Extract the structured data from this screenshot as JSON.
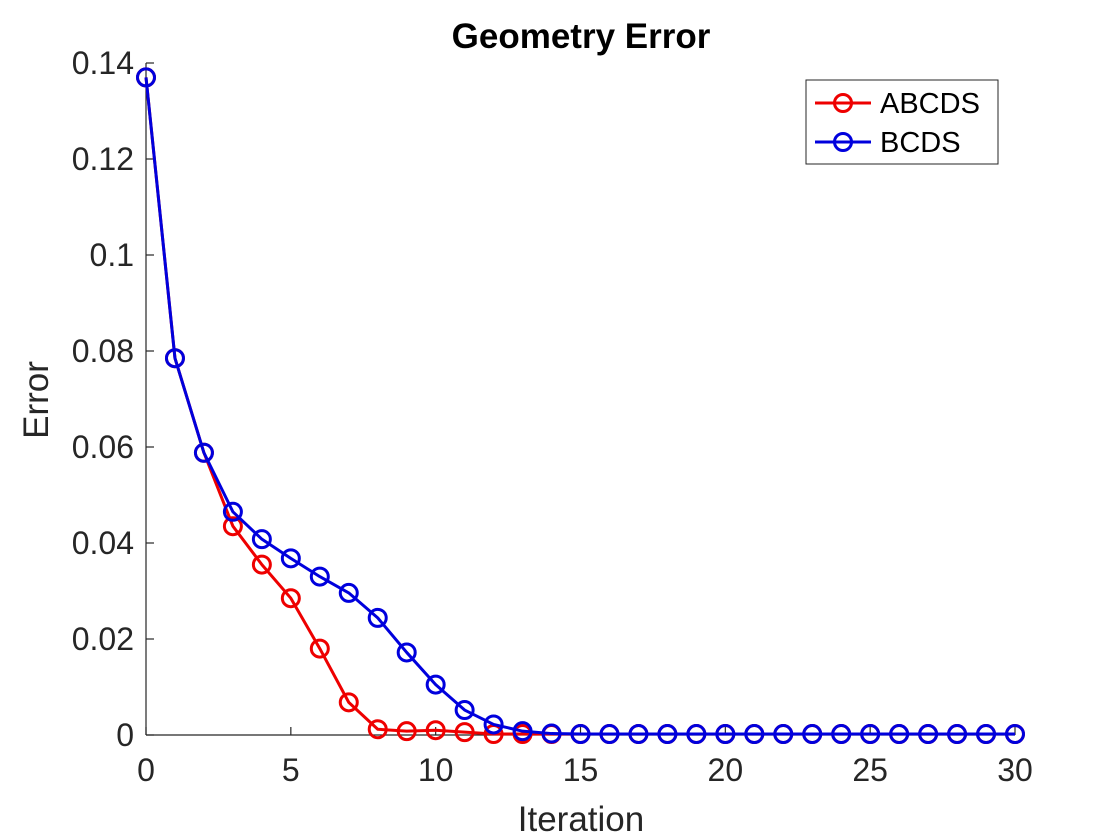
{
  "chart_data": {
    "type": "line",
    "title": "Geometry Error",
    "xlabel": "Iteration",
    "ylabel": "Error",
    "xlim": [
      0,
      30
    ],
    "ylim": [
      0,
      0.14
    ],
    "xticks": [
      0,
      5,
      10,
      15,
      20,
      25,
      30
    ],
    "xtick_labels": [
      "0",
      "5",
      "10",
      "15",
      "20",
      "25",
      "30"
    ],
    "yticks": [
      0,
      0.02,
      0.04,
      0.06,
      0.08,
      0.1,
      0.12,
      0.14
    ],
    "ytick_labels": [
      "0",
      "0.02",
      "0.04",
      "0.06",
      "0.08",
      "0.1",
      "0.12",
      "0.14"
    ],
    "grid": false,
    "legend_position": "top-right",
    "marker": "circle",
    "x": [
      0,
      1,
      2,
      3,
      4,
      5,
      6,
      7,
      8,
      9,
      10,
      11,
      12,
      13,
      14,
      15,
      16,
      17,
      18,
      19,
      20,
      21,
      22,
      23,
      24,
      25,
      26,
      27,
      28,
      29,
      30
    ],
    "series": [
      {
        "name": "ABCDS",
        "color": "#ee0000",
        "values": [
          0.137,
          0.0785,
          0.0588,
          0.0435,
          0.0355,
          0.0285,
          0.018,
          0.0068,
          0.0012,
          0.0008,
          0.001,
          0.0006,
          0.0002,
          0.0002,
          0.0002,
          0.0002,
          0.0002,
          0.0002,
          0.0002,
          0.0002,
          0.0002,
          0.0002,
          0.0002,
          0.0002,
          0.0002,
          0.0002,
          0.0002,
          0.0002,
          0.0002,
          0.0002,
          0.0002
        ]
      },
      {
        "name": "BCDS",
        "color": "#0000dd",
        "values": [
          0.137,
          0.0785,
          0.0588,
          0.0465,
          0.0408,
          0.0368,
          0.033,
          0.0296,
          0.0244,
          0.0172,
          0.0105,
          0.0052,
          0.0022,
          0.0008,
          0.0003,
          0.0002,
          0.0002,
          0.0002,
          0.0002,
          0.0002,
          0.0002,
          0.0002,
          0.0002,
          0.0002,
          0.0002,
          0.0002,
          0.0002,
          0.0002,
          0.0002,
          0.0002,
          0.0002
        ]
      }
    ]
  }
}
